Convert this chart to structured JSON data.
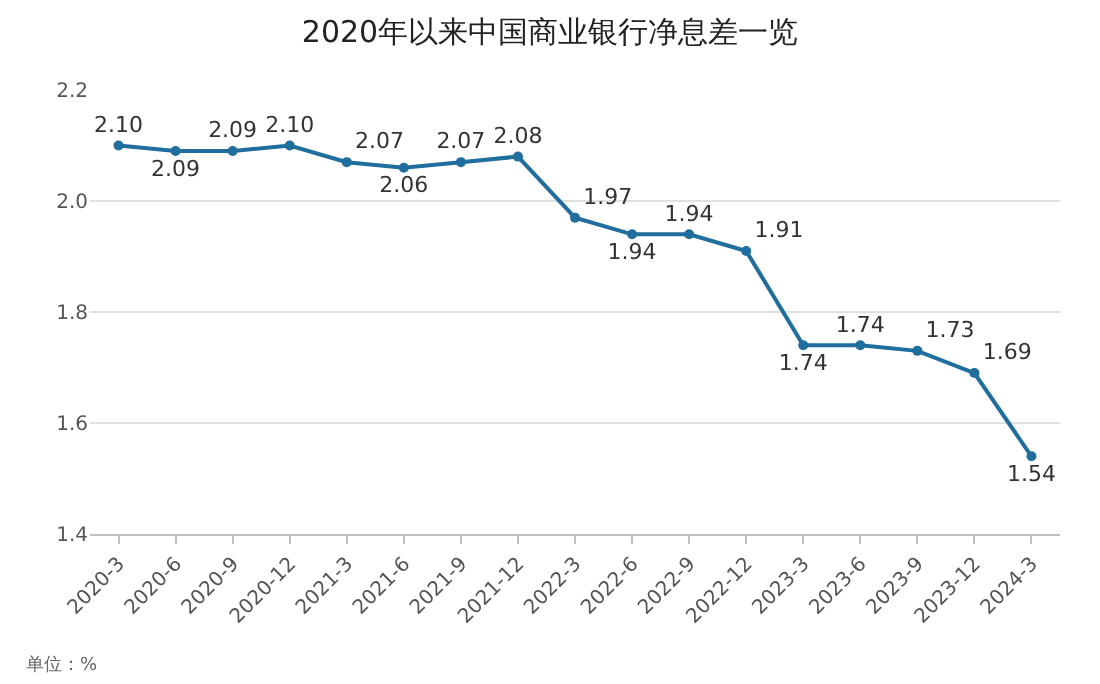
{
  "chart_data": {
    "type": "line",
    "title": "2020年以来中国商业银行净息差一览",
    "categories": [
      "2020-3",
      "2020-6",
      "2020-9",
      "2020-12",
      "2021-3",
      "2021-6",
      "2021-9",
      "2021-12",
      "2022-3",
      "2022-6",
      "2022-9",
      "2022-12",
      "2023-3",
      "2023-6",
      "2023-9",
      "2023-12",
      "2024-3"
    ],
    "series": [
      {
        "color": "#1f6e9e",
        "values": [
          2.1,
          2.09,
          2.09,
          2.1,
          2.07,
          2.06,
          2.07,
          2.08,
          1.97,
          1.94,
          1.94,
          1.91,
          1.74,
          1.74,
          1.73,
          1.69,
          1.54
        ],
        "value_labels": [
          "2.10",
          "2.09",
          "2.09",
          "2.10",
          "2.07",
          "2.06",
          "2.07",
          "2.08",
          "1.97",
          "1.94",
          "1.94",
          "1.91",
          "1.74",
          "1.74",
          "1.73",
          "1.69",
          "1.54"
        ]
      }
    ],
    "ylim": [
      1.4,
      2.2
    ],
    "yticks": [
      {
        "value": 1.4,
        "label": "1.4"
      },
      {
        "value": 1.6,
        "label": "1.6"
      },
      {
        "value": 1.8,
        "label": "1.8"
      },
      {
        "value": 2.0,
        "label": "2.0"
      },
      {
        "value": 2.2,
        "label": "2.2"
      }
    ],
    "grid": "y",
    "marker": "circle",
    "line_style": "solid",
    "annotations": [
      "单位：%"
    ]
  }
}
